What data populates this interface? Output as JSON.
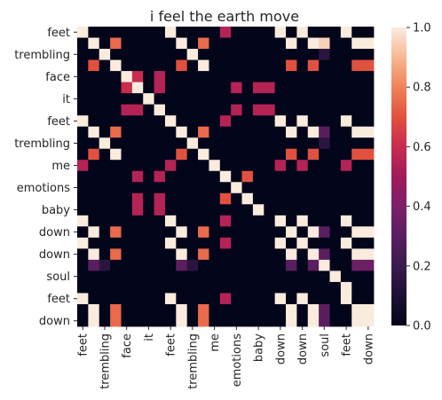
{
  "chart_data": {
    "type": "heatmap",
    "title": "i feel the earth move",
    "x_labels": [
      "feet",
      "",
      "trembling",
      "",
      "face",
      "",
      "it",
      "",
      "feet",
      "",
      "trembling",
      "",
      "me",
      "",
      "emotions",
      "",
      "baby",
      "",
      "down",
      "",
      "down",
      "",
      "soul",
      "",
      "feet",
      "",
      "down"
    ],
    "y_labels": [
      "feet",
      "",
      "trembling",
      "",
      "face",
      "",
      "it",
      "",
      "feet",
      "",
      "trembling",
      "",
      "me",
      "",
      "emotions",
      "",
      "baby",
      "",
      "down",
      "",
      "down",
      "",
      "soul",
      "",
      "feet",
      "",
      "down"
    ],
    "matrix": [
      [
        1,
        0,
        0,
        0,
        0,
        0,
        0,
        0,
        1,
        0,
        0,
        0,
        0,
        0.55,
        0,
        0,
        0,
        0,
        1,
        0,
        1,
        0,
        0,
        0,
        1,
        0,
        0
      ],
      [
        0,
        1,
        0,
        0.75,
        0,
        0,
        0,
        0,
        0,
        1,
        0,
        0.75,
        0,
        0,
        0,
        0,
        0,
        0,
        0,
        1,
        0,
        1,
        0.95,
        0,
        0,
        1,
        1
      ],
      [
        0,
        0,
        1,
        0,
        0,
        0,
        0,
        0,
        0,
        0,
        1,
        0,
        0,
        0,
        0,
        0,
        0,
        0,
        0,
        0,
        0,
        0,
        0.15,
        0,
        0,
        0,
        0
      ],
      [
        0,
        0.7,
        0,
        1,
        0,
        0,
        0,
        0,
        0,
        0.7,
        0,
        1,
        0,
        0,
        0,
        0,
        0,
        0,
        0,
        0.7,
        0,
        0.7,
        0,
        0,
        0,
        0.7,
        0.7
      ],
      [
        0,
        0,
        0,
        0,
        1,
        0.6,
        0,
        0.55,
        0,
        0,
        0,
        0,
        0,
        0,
        0,
        0,
        0,
        0,
        0,
        0,
        0,
        0,
        0,
        0,
        0,
        0,
        0
      ],
      [
        0,
        0,
        0,
        0,
        0.6,
        1,
        0,
        0.55,
        0,
        0,
        0,
        0,
        0,
        0,
        0.55,
        0,
        0.55,
        0.55,
        0,
        0,
        0,
        0,
        0,
        0,
        0,
        0,
        0
      ],
      [
        0,
        0,
        0,
        0,
        0,
        0,
        1,
        0,
        0,
        0,
        0,
        0,
        0,
        0,
        0,
        0,
        0,
        0,
        0,
        0,
        0,
        0,
        0,
        0,
        0,
        0,
        0
      ],
      [
        0,
        0,
        0,
        0,
        0.55,
        0.55,
        0,
        1,
        0,
        0,
        0,
        0,
        0,
        0,
        0.55,
        0,
        0.55,
        0.55,
        0,
        0,
        0,
        0,
        0,
        0,
        0,
        0,
        0
      ],
      [
        1,
        0,
        0,
        0,
        0,
        0,
        0,
        0,
        1,
        0,
        0,
        0,
        0,
        0.55,
        0,
        0,
        0,
        0,
        1,
        0,
        1,
        0,
        0,
        0,
        1,
        0,
        0
      ],
      [
        0,
        1,
        0,
        0.75,
        0,
        0,
        0,
        0,
        0,
        1,
        0,
        0.75,
        0,
        0,
        0,
        0,
        0,
        0,
        0,
        1,
        0,
        1,
        0.3,
        0,
        0,
        1,
        1
      ],
      [
        0,
        0,
        1,
        0,
        0,
        0,
        0,
        0,
        0,
        0,
        1,
        0,
        0,
        0,
        0,
        0,
        0,
        0,
        0,
        0,
        0,
        0,
        0.15,
        0,
        0,
        0,
        0
      ],
      [
        0,
        0.7,
        0,
        1,
        0,
        0,
        0,
        0,
        0,
        0.7,
        0,
        1,
        0,
        0,
        0,
        0,
        0,
        0,
        0,
        0.7,
        0,
        0.7,
        0,
        0,
        0,
        0.7,
        0.7
      ],
      [
        0.55,
        0,
        0,
        0,
        0,
        0,
        0,
        0,
        0.55,
        0,
        0,
        0,
        1,
        0,
        0,
        0,
        0,
        0,
        0.55,
        0,
        0.55,
        0,
        0,
        0,
        0.55,
        0,
        0
      ],
      [
        0,
        0,
        0,
        0,
        0,
        0.55,
        0,
        0.55,
        0,
        0,
        0,
        0,
        0,
        1,
        0,
        0.7,
        0,
        0,
        0,
        0,
        0,
        0,
        0,
        0,
        0,
        0,
        0
      ],
      [
        0,
        0,
        0,
        0,
        0,
        0,
        0,
        0,
        0,
        0,
        0,
        0,
        0,
        0,
        1,
        0,
        0,
        0,
        0,
        0,
        0,
        0,
        0,
        0,
        0,
        0,
        0
      ],
      [
        0,
        0,
        0,
        0,
        0,
        0.55,
        0,
        0.55,
        0,
        0,
        0,
        0,
        0,
        0.7,
        0,
        1,
        0,
        0,
        0,
        0,
        0,
        0,
        0,
        0,
        0,
        0,
        0
      ],
      [
        0,
        0,
        0,
        0,
        0,
        0.55,
        0,
        0.55,
        0,
        0,
        0,
        0,
        0,
        0,
        0,
        0,
        1,
        0,
        0,
        0,
        0,
        0,
        0,
        0,
        0,
        0,
        0
      ],
      [
        1,
        0,
        0,
        0,
        0,
        0,
        0,
        0,
        1,
        0,
        0,
        0,
        0,
        0.55,
        0,
        0,
        0,
        0,
        1,
        0,
        1,
        0,
        0,
        0,
        1,
        0,
        0
      ],
      [
        0,
        1,
        0,
        0.75,
        0,
        0,
        0,
        0,
        0,
        1,
        0,
        0.75,
        0,
        0,
        0,
        0,
        0,
        0,
        0,
        1,
        0,
        1,
        0.3,
        0,
        0,
        1,
        1
      ],
      [
        1,
        0,
        0,
        0,
        0,
        0,
        0,
        0,
        1,
        0,
        0,
        0,
        0,
        0.55,
        0,
        0,
        0,
        0,
        1,
        0,
        1,
        0,
        0,
        0,
        1,
        0,
        0
      ],
      [
        0,
        1,
        0,
        0.75,
        0,
        0,
        0,
        0,
        0,
        1,
        0,
        0.75,
        0,
        0,
        0,
        0,
        0,
        0,
        0,
        1,
        0,
        1,
        0.3,
        0,
        0,
        1,
        1
      ],
      [
        0,
        0.3,
        0.15,
        0,
        0,
        0,
        0,
        0,
        0,
        0.3,
        0.15,
        0,
        0,
        0,
        0,
        0,
        0,
        0,
        0,
        0.3,
        0,
        0.3,
        1,
        0,
        0,
        0.35,
        0.35
      ],
      [
        0,
        0,
        0,
        0,
        0,
        0,
        0,
        0,
        0,
        0,
        0,
        0,
        0,
        0,
        0,
        0,
        0,
        0,
        0,
        0,
        0,
        0,
        0,
        1,
        0,
        0,
        0
      ],
      [
        0,
        0,
        0,
        0,
        0,
        0,
        0,
        0,
        0,
        0,
        0,
        0,
        0,
        0,
        0,
        0,
        0,
        0,
        0,
        0,
        0,
        0,
        0,
        0,
        1,
        0,
        0
      ],
      [
        1,
        0,
        0,
        0,
        0,
        0,
        0,
        0,
        1,
        0,
        0,
        0,
        0,
        0.55,
        0,
        0,
        0,
        0,
        1,
        0,
        1,
        0,
        0,
        0,
        1,
        0,
        0
      ],
      [
        0,
        1,
        0,
        0.75,
        0,
        0,
        0,
        0,
        0,
        1,
        0,
        0.75,
        0,
        0,
        0,
        0,
        0,
        0,
        0,
        1,
        0,
        1,
        0.3,
        0,
        0,
        1,
        1
      ],
      [
        0,
        1,
        0,
        0.75,
        0,
        0,
        0,
        0,
        0,
        1,
        0,
        0.75,
        0,
        0,
        0,
        0,
        0,
        0,
        0,
        1,
        0,
        1,
        0.3,
        0,
        0,
        1,
        1
      ]
    ],
    "colorbar": {
      "min": 0.0,
      "max": 1.0,
      "ticks": [
        "0.0",
        "0.2",
        "0.4",
        "0.6",
        "0.8",
        "1.0"
      ]
    },
    "colormap": "rocket"
  }
}
